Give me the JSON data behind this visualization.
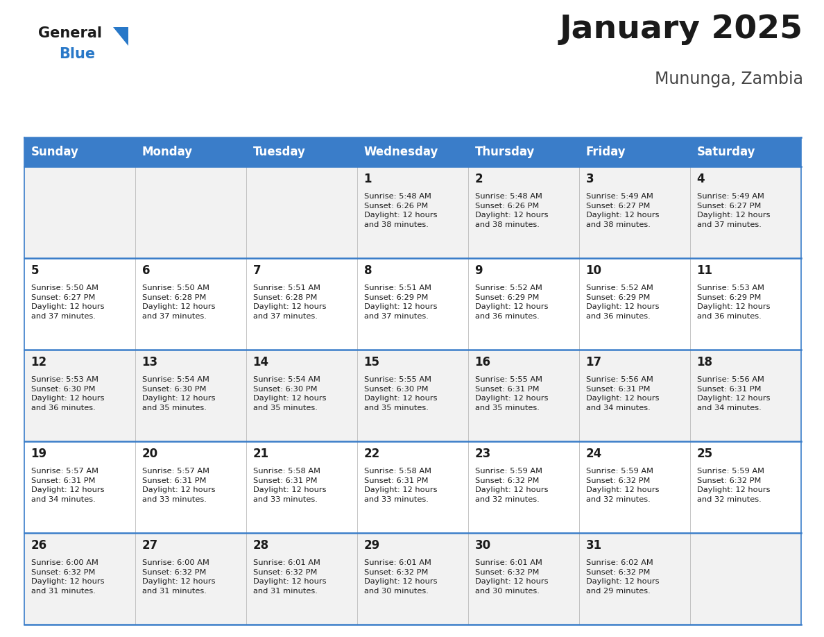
{
  "title": "January 2025",
  "subtitle": "Mununga, Zambia",
  "header_color": "#3A7DC9",
  "header_text_color": "#FFFFFF",
  "cell_bg_even": "#F2F2F2",
  "cell_bg_odd": "#FFFFFF",
  "border_color": "#3A7DC9",
  "grid_color": "#BBBBBB",
  "day_names": [
    "Sunday",
    "Monday",
    "Tuesday",
    "Wednesday",
    "Thursday",
    "Friday",
    "Saturday"
  ],
  "calendar": [
    [
      {
        "day": "",
        "sunrise": "",
        "sunset": "",
        "daylight_hrs": 0,
        "daylight_min": 0
      },
      {
        "day": "",
        "sunrise": "",
        "sunset": "",
        "daylight_hrs": 0,
        "daylight_min": 0
      },
      {
        "day": "",
        "sunrise": "",
        "sunset": "",
        "daylight_hrs": 0,
        "daylight_min": 0
      },
      {
        "day": "1",
        "sunrise": "5:48 AM",
        "sunset": "6:26 PM",
        "daylight_hrs": 12,
        "daylight_min": 38
      },
      {
        "day": "2",
        "sunrise": "5:48 AM",
        "sunset": "6:26 PM",
        "daylight_hrs": 12,
        "daylight_min": 38
      },
      {
        "day": "3",
        "sunrise": "5:49 AM",
        "sunset": "6:27 PM",
        "daylight_hrs": 12,
        "daylight_min": 38
      },
      {
        "day": "4",
        "sunrise": "5:49 AM",
        "sunset": "6:27 PM",
        "daylight_hrs": 12,
        "daylight_min": 37
      }
    ],
    [
      {
        "day": "5",
        "sunrise": "5:50 AM",
        "sunset": "6:27 PM",
        "daylight_hrs": 12,
        "daylight_min": 37
      },
      {
        "day": "6",
        "sunrise": "5:50 AM",
        "sunset": "6:28 PM",
        "daylight_hrs": 12,
        "daylight_min": 37
      },
      {
        "day": "7",
        "sunrise": "5:51 AM",
        "sunset": "6:28 PM",
        "daylight_hrs": 12,
        "daylight_min": 37
      },
      {
        "day": "8",
        "sunrise": "5:51 AM",
        "sunset": "6:29 PM",
        "daylight_hrs": 12,
        "daylight_min": 37
      },
      {
        "day": "9",
        "sunrise": "5:52 AM",
        "sunset": "6:29 PM",
        "daylight_hrs": 12,
        "daylight_min": 36
      },
      {
        "day": "10",
        "sunrise": "5:52 AM",
        "sunset": "6:29 PM",
        "daylight_hrs": 12,
        "daylight_min": 36
      },
      {
        "day": "11",
        "sunrise": "5:53 AM",
        "sunset": "6:29 PM",
        "daylight_hrs": 12,
        "daylight_min": 36
      }
    ],
    [
      {
        "day": "12",
        "sunrise": "5:53 AM",
        "sunset": "6:30 PM",
        "daylight_hrs": 12,
        "daylight_min": 36
      },
      {
        "day": "13",
        "sunrise": "5:54 AM",
        "sunset": "6:30 PM",
        "daylight_hrs": 12,
        "daylight_min": 35
      },
      {
        "day": "14",
        "sunrise": "5:54 AM",
        "sunset": "6:30 PM",
        "daylight_hrs": 12,
        "daylight_min": 35
      },
      {
        "day": "15",
        "sunrise": "5:55 AM",
        "sunset": "6:30 PM",
        "daylight_hrs": 12,
        "daylight_min": 35
      },
      {
        "day": "16",
        "sunrise": "5:55 AM",
        "sunset": "6:31 PM",
        "daylight_hrs": 12,
        "daylight_min": 35
      },
      {
        "day": "17",
        "sunrise": "5:56 AM",
        "sunset": "6:31 PM",
        "daylight_hrs": 12,
        "daylight_min": 34
      },
      {
        "day": "18",
        "sunrise": "5:56 AM",
        "sunset": "6:31 PM",
        "daylight_hrs": 12,
        "daylight_min": 34
      }
    ],
    [
      {
        "day": "19",
        "sunrise": "5:57 AM",
        "sunset": "6:31 PM",
        "daylight_hrs": 12,
        "daylight_min": 34
      },
      {
        "day": "20",
        "sunrise": "5:57 AM",
        "sunset": "6:31 PM",
        "daylight_hrs": 12,
        "daylight_min": 33
      },
      {
        "day": "21",
        "sunrise": "5:58 AM",
        "sunset": "6:31 PM",
        "daylight_hrs": 12,
        "daylight_min": 33
      },
      {
        "day": "22",
        "sunrise": "5:58 AM",
        "sunset": "6:31 PM",
        "daylight_hrs": 12,
        "daylight_min": 33
      },
      {
        "day": "23",
        "sunrise": "5:59 AM",
        "sunset": "6:32 PM",
        "daylight_hrs": 12,
        "daylight_min": 32
      },
      {
        "day": "24",
        "sunrise": "5:59 AM",
        "sunset": "6:32 PM",
        "daylight_hrs": 12,
        "daylight_min": 32
      },
      {
        "day": "25",
        "sunrise": "5:59 AM",
        "sunset": "6:32 PM",
        "daylight_hrs": 12,
        "daylight_min": 32
      }
    ],
    [
      {
        "day": "26",
        "sunrise": "6:00 AM",
        "sunset": "6:32 PM",
        "daylight_hrs": 12,
        "daylight_min": 31
      },
      {
        "day": "27",
        "sunrise": "6:00 AM",
        "sunset": "6:32 PM",
        "daylight_hrs": 12,
        "daylight_min": 31
      },
      {
        "day": "28",
        "sunrise": "6:01 AM",
        "sunset": "6:32 PM",
        "daylight_hrs": 12,
        "daylight_min": 31
      },
      {
        "day": "29",
        "sunrise": "6:01 AM",
        "sunset": "6:32 PM",
        "daylight_hrs": 12,
        "daylight_min": 30
      },
      {
        "day": "30",
        "sunrise": "6:01 AM",
        "sunset": "6:32 PM",
        "daylight_hrs": 12,
        "daylight_min": 30
      },
      {
        "day": "31",
        "sunrise": "6:02 AM",
        "sunset": "6:32 PM",
        "daylight_hrs": 12,
        "daylight_min": 29
      },
      {
        "day": "",
        "sunrise": "",
        "sunset": "",
        "daylight_hrs": 0,
        "daylight_min": 0
      }
    ]
  ],
  "logo_color_general": "#1a1a1a",
  "logo_color_blue": "#2878C8",
  "title_fontsize": 34,
  "subtitle_fontsize": 17,
  "header_fontsize": 12,
  "day_number_fontsize": 12,
  "cell_text_fontsize": 8.2
}
